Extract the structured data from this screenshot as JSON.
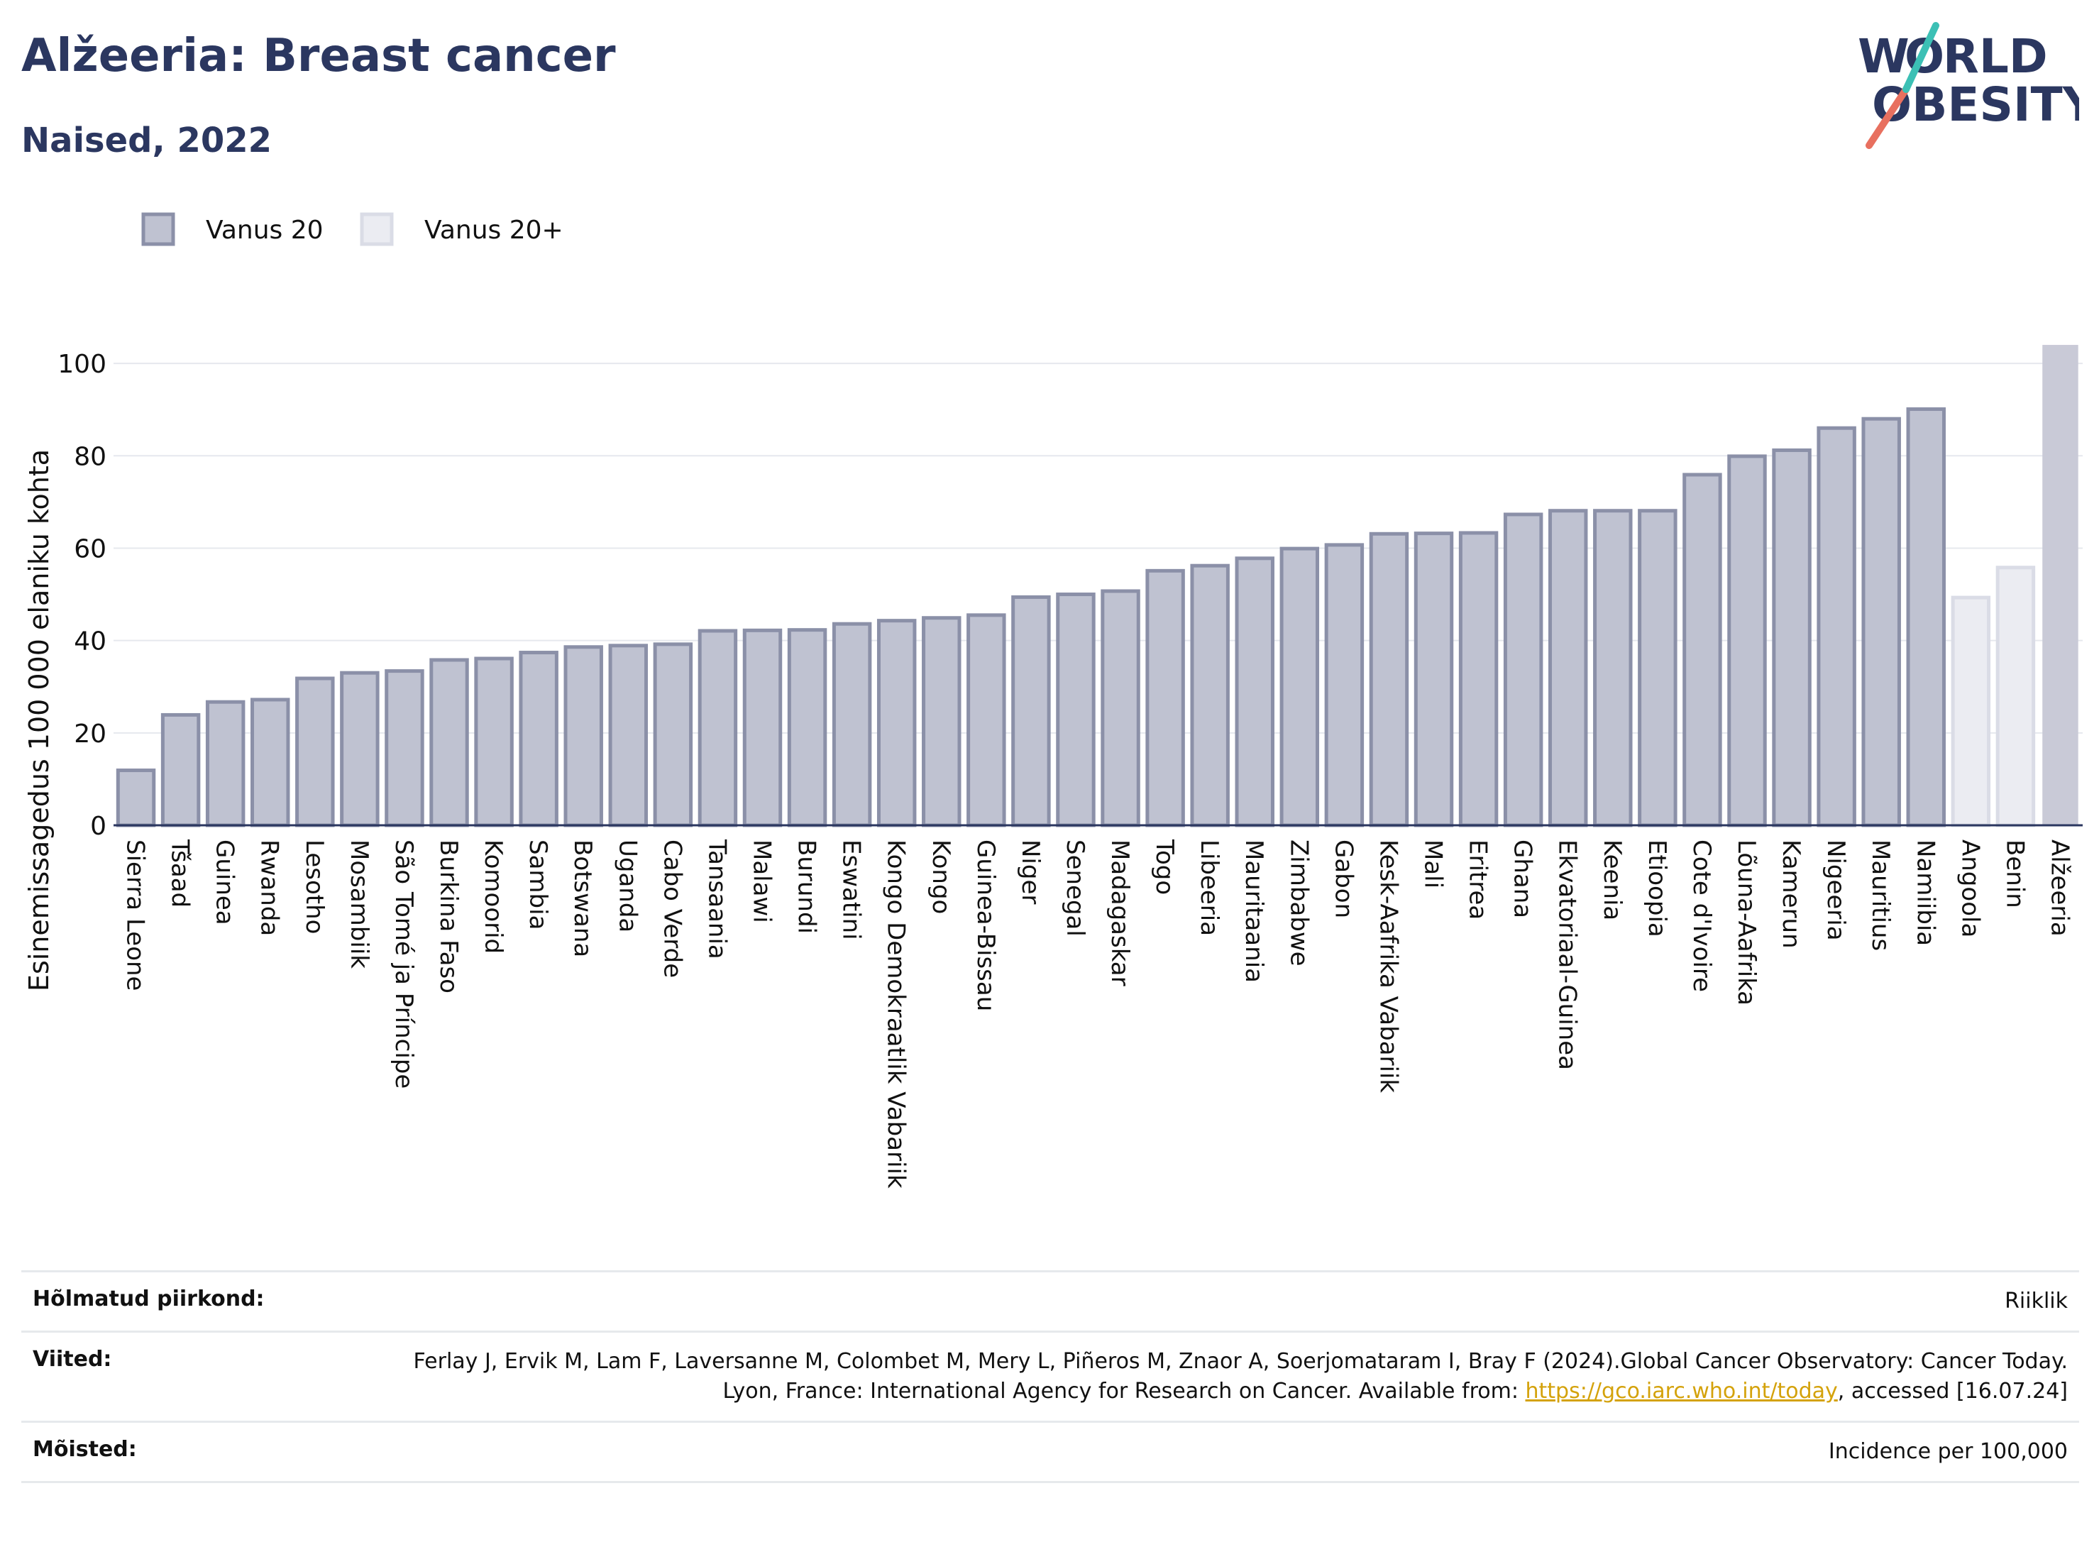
{
  "header": {
    "title": "Alžeeria: Breast cancer",
    "subtitle": "Naised, 2022"
  },
  "logo": {
    "line1": "WORLD",
    "line2": "OBESITY",
    "text": "WORLD OBESITY"
  },
  "legend": {
    "placement": "top-left",
    "items": [
      {
        "label": "Vanus 20",
        "color": "#bfc2d1",
        "border": "#8b90a8"
      },
      {
        "label": "Vanus 20+",
        "color": "#ebecf2",
        "border": "#dadce6"
      }
    ]
  },
  "colors": {
    "title": "#2b3760",
    "bar_fill": "#bfc2d1",
    "bar_border": "#8b90a8",
    "bar_light_fill": "#ebecf2",
    "bar_light_border": "#dadce6",
    "highlight_fill": "#c9cad7",
    "axis_line": "#2b3760",
    "gridline": "#e6e8ee",
    "link": "#d4a20b"
  },
  "chart_data": {
    "type": "bar",
    "ylabel": "Esinemissagedus 100 000 elaniku kohta",
    "xlabel": "",
    "ylim": [
      0,
      110
    ],
    "yticks": [
      0,
      20,
      40,
      60,
      80,
      100
    ],
    "grid": true,
    "categories": [
      "Sierra Leone",
      "Tšaad",
      "Guinea",
      "Rwanda",
      "Lesotho",
      "Mosambiik",
      "São Tomé ja Príncipe",
      "Burkina Faso",
      "Komoorid",
      "Sambia",
      "Botswana",
      "Uganda",
      "Cabo Verde",
      "Tansaania",
      "Malawi",
      "Burundi",
      "Eswatini",
      "Kongo Demokraatlik Vabariik",
      "Kongo",
      "Guinea-Bissau",
      "Niger",
      "Senegal",
      "Madagaskar",
      "Togo",
      "Libeeria",
      "Mauritaania",
      "Zimbabwe",
      "Gabon",
      "Kesk-Aafrika Vabariik",
      "Mali",
      "Eritrea",
      "Ghana",
      "Ekvatoriaal-Guinea",
      "Keenia",
      "Etioopia",
      "Cote d'Ivoire",
      "Lõuna-Aafrika",
      "Kamerun",
      "Nigeeria",
      "Mauritius",
      "Namiibia",
      "Angoola",
      "Benin",
      "Alžeeria"
    ],
    "values": [
      11.9,
      23.9,
      26.7,
      27.2,
      31.8,
      33.0,
      33.4,
      35.8,
      36.1,
      37.4,
      38.6,
      38.9,
      39.2,
      42.1,
      42.2,
      42.3,
      43.6,
      44.3,
      44.9,
      45.5,
      49.4,
      50.0,
      50.7,
      55.1,
      56.2,
      57.8,
      59.9,
      60.7,
      63.1,
      63.2,
      63.3,
      67.3,
      68.1,
      68.1,
      68.1,
      75.9,
      79.9,
      81.2,
      86.0,
      88.0,
      90.1,
      49.3,
      55.8,
      104.0
    ],
    "series_by_bar": [
      "Vanus 20",
      "Vanus 20",
      "Vanus 20",
      "Vanus 20",
      "Vanus 20",
      "Vanus 20",
      "Vanus 20",
      "Vanus 20",
      "Vanus 20",
      "Vanus 20",
      "Vanus 20",
      "Vanus 20",
      "Vanus 20",
      "Vanus 20",
      "Vanus 20",
      "Vanus 20",
      "Vanus 20",
      "Vanus 20",
      "Vanus 20",
      "Vanus 20",
      "Vanus 20",
      "Vanus 20",
      "Vanus 20",
      "Vanus 20",
      "Vanus 20",
      "Vanus 20",
      "Vanus 20",
      "Vanus 20",
      "Vanus 20",
      "Vanus 20",
      "Vanus 20",
      "Vanus 20",
      "Vanus 20",
      "Vanus 20",
      "Vanus 20",
      "Vanus 20",
      "Vanus 20",
      "Vanus 20",
      "Vanus 20",
      "Vanus 20",
      "Vanus 20",
      "Vanus 20+",
      "Vanus 20+",
      "Alžeeria"
    ]
  },
  "meta": {
    "region": {
      "label": "Hõlmatud piirkond:",
      "value": "Riiklik"
    },
    "references": {
      "label": "Viited:",
      "text_before_link": "Ferlay J, Ervik M, Lam F, Laversanne M, Colombet M, Mery L, Piñeros M, Znaor A, Soerjomataram I, Bray F (2024).Global Cancer Observatory: Cancer Today. Lyon, France: International Agency for Research on Cancer. Available from: ",
      "link": "https://gco.iarc.who.int/today",
      "text_after_link": ", accessed [16.07.24]"
    },
    "definitions": {
      "label": "Mõisted:",
      "value": "Incidence per 100,000"
    }
  }
}
